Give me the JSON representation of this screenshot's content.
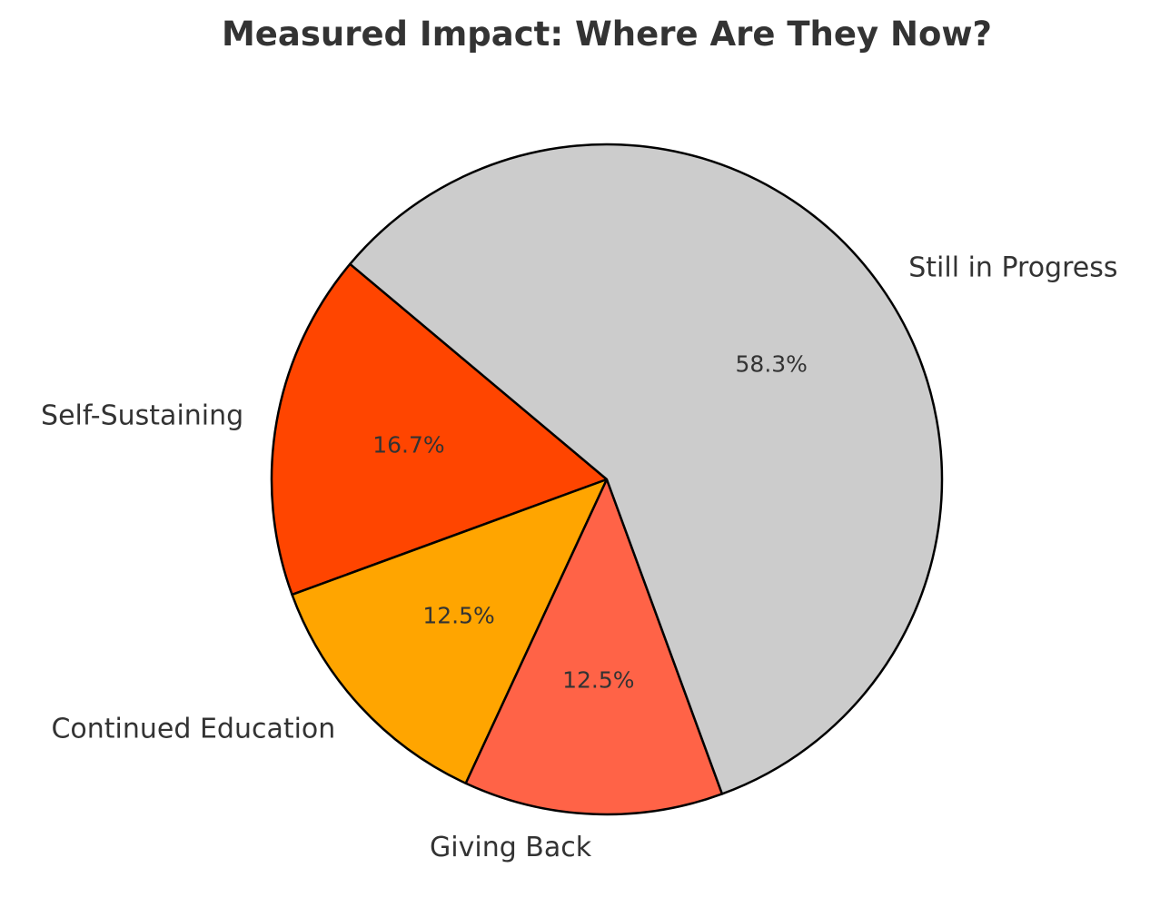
{
  "chart_data": {
    "type": "pie",
    "title": "Measured Impact: Where Are They Now?",
    "categories": [
      "Self-Sustaining",
      "Continued Education",
      "Giving Back",
      "Still in Progress"
    ],
    "values": [
      16.7,
      12.5,
      12.5,
      58.3
    ],
    "percent_labels": [
      "16.7%",
      "12.5%",
      "12.5%",
      "58.3%"
    ],
    "colors": [
      "#FF4500",
      "#FFA500",
      "#FF6347",
      "#CCCCCC"
    ],
    "start_angle_deg": 140,
    "direction": "counterclockwise",
    "edge_color": "#000000",
    "legend": "none"
  }
}
